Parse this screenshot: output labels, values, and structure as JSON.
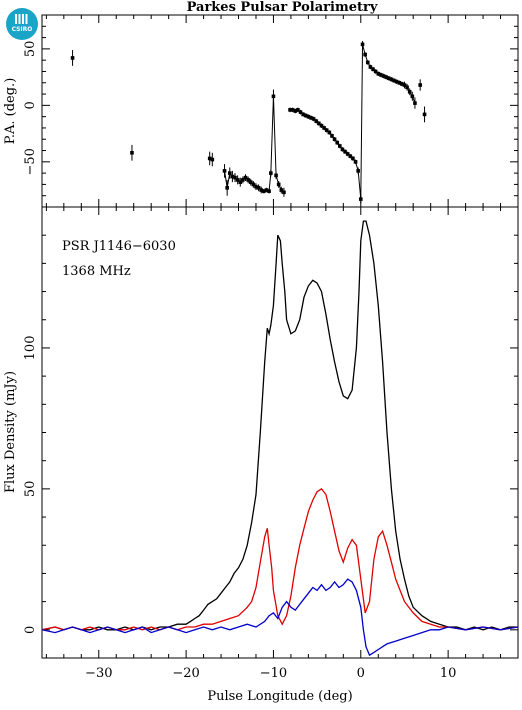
{
  "logo": {
    "text": "CSIRO",
    "color": "#1aa4c8"
  },
  "chart_data": {
    "type": "line",
    "title": "Parkes Pulsar Polarimetry",
    "xlabel": "Pulse Longitude (deg)",
    "xlim": [
      -36.5,
      18
    ],
    "xticks": [
      "−30",
      "−20",
      "−10",
      "0",
      "10"
    ],
    "xtick_values": [
      -30,
      -20,
      -10,
      0,
      10
    ],
    "annotations": [
      "PSR J1146−6030",
      "1368 MHz"
    ],
    "pa_panel": {
      "ylabel": "P.A. (deg.)",
      "ylim": [
        -90,
        80
      ],
      "yticks": [
        "50",
        "0",
        "−50"
      ],
      "ytick_values": [
        50,
        0,
        -50
      ],
      "points": [
        {
          "x": -33.0,
          "y": 42,
          "err": 7
        },
        {
          "x": -26.2,
          "y": -42,
          "err": 7
        },
        {
          "x": -17.3,
          "y": -47,
          "err": 6
        },
        {
          "x": -17.0,
          "y": -48,
          "err": 6
        },
        {
          "x": -15.6,
          "y": -58,
          "err": 6
        },
        {
          "x": -15.3,
          "y": -73,
          "err": 7
        },
        {
          "x": -15.0,
          "y": -60,
          "err": 5
        },
        {
          "x": -14.7,
          "y": -63,
          "err": 5
        },
        {
          "x": -14.4,
          "y": -64,
          "err": 4
        },
        {
          "x": -14.1,
          "y": -66,
          "err": 4
        },
        {
          "x": -13.8,
          "y": -68,
          "err": 4
        },
        {
          "x": -13.5,
          "y": -66,
          "err": 3
        },
        {
          "x": -13.2,
          "y": -64,
          "err": 3
        },
        {
          "x": -12.9,
          "y": -66,
          "err": 3
        },
        {
          "x": -12.6,
          "y": -68,
          "err": 3
        },
        {
          "x": -12.3,
          "y": -70,
          "err": 3
        },
        {
          "x": -12.0,
          "y": -72,
          "err": 3
        },
        {
          "x": -11.7,
          "y": -73,
          "err": 3
        },
        {
          "x": -11.4,
          "y": -75,
          "err": 3
        },
        {
          "x": -11.1,
          "y": -76,
          "err": 2
        },
        {
          "x": -10.8,
          "y": -75,
          "err": 2
        },
        {
          "x": -10.5,
          "y": -76,
          "err": 2
        },
        {
          "x": -10.3,
          "y": -60,
          "err": 3
        },
        {
          "x": -10.0,
          "y": 8,
          "err": 6
        },
        {
          "x": -9.7,
          "y": -62,
          "err": 3
        },
        {
          "x": -9.4,
          "y": -70,
          "err": 3
        },
        {
          "x": -9.1,
          "y": -75,
          "err": 3
        },
        {
          "x": -8.8,
          "y": -77,
          "err": 4
        },
        {
          "x": -8.1,
          "y": -4,
          "err": 2
        },
        {
          "x": -7.8,
          "y": -4,
          "err": 2
        },
        {
          "x": -7.5,
          "y": -5,
          "err": 2
        },
        {
          "x": -7.2,
          "y": -4,
          "err": 2
        },
        {
          "x": -6.9,
          "y": -6,
          "err": 2
        },
        {
          "x": -6.6,
          "y": -8,
          "err": 2
        },
        {
          "x": -6.3,
          "y": -9,
          "err": 2
        },
        {
          "x": -6.0,
          "y": -10,
          "err": 2
        },
        {
          "x": -5.7,
          "y": -11,
          "err": 2
        },
        {
          "x": -5.4,
          "y": -12,
          "err": 2
        },
        {
          "x": -5.1,
          "y": -14,
          "err": 2
        },
        {
          "x": -4.8,
          "y": -16,
          "err": 2
        },
        {
          "x": -4.5,
          "y": -18,
          "err": 2
        },
        {
          "x": -4.2,
          "y": -20,
          "err": 2
        },
        {
          "x": -3.9,
          "y": -22,
          "err": 2
        },
        {
          "x": -3.6,
          "y": -24,
          "err": 2
        },
        {
          "x": -3.3,
          "y": -27,
          "err": 2
        },
        {
          "x": -3.0,
          "y": -30,
          "err": 2
        },
        {
          "x": -2.7,
          "y": -33,
          "err": 2
        },
        {
          "x": -2.4,
          "y": -36,
          "err": 2
        },
        {
          "x": -2.1,
          "y": -39,
          "err": 2
        },
        {
          "x": -1.8,
          "y": -41,
          "err": 2
        },
        {
          "x": -1.5,
          "y": -43,
          "err": 2
        },
        {
          "x": -1.2,
          "y": -45,
          "err": 2
        },
        {
          "x": -0.9,
          "y": -47,
          "err": 2
        },
        {
          "x": -0.6,
          "y": -50,
          "err": 2
        },
        {
          "x": -0.3,
          "y": -58,
          "err": 3
        },
        {
          "x": 0.0,
          "y": -83,
          "err": 4
        },
        {
          "x": 0.2,
          "y": 54,
          "err": 3
        },
        {
          "x": 0.5,
          "y": 45,
          "err": 2
        },
        {
          "x": 0.8,
          "y": 38,
          "err": 2
        },
        {
          "x": 1.1,
          "y": 34,
          "err": 2
        },
        {
          "x": 1.4,
          "y": 32,
          "err": 2
        },
        {
          "x": 1.7,
          "y": 30,
          "err": 2
        },
        {
          "x": 2.0,
          "y": 28,
          "err": 2
        },
        {
          "x": 2.3,
          "y": 27,
          "err": 2
        },
        {
          "x": 2.6,
          "y": 26,
          "err": 2
        },
        {
          "x": 2.9,
          "y": 25,
          "err": 2
        },
        {
          "x": 3.2,
          "y": 24,
          "err": 2
        },
        {
          "x": 3.5,
          "y": 23,
          "err": 2
        },
        {
          "x": 3.8,
          "y": 22,
          "err": 2
        },
        {
          "x": 4.1,
          "y": 21,
          "err": 2
        },
        {
          "x": 4.4,
          "y": 20,
          "err": 2
        },
        {
          "x": 4.7,
          "y": 19,
          "err": 2
        },
        {
          "x": 5.0,
          "y": 18,
          "err": 3
        },
        {
          "x": 5.3,
          "y": 16,
          "err": 3
        },
        {
          "x": 5.6,
          "y": 12,
          "err": 3
        },
        {
          "x": 5.9,
          "y": 8,
          "err": 4
        },
        {
          "x": 6.2,
          "y": 2,
          "err": 5
        },
        {
          "x": 6.8,
          "y": 18,
          "err": 5
        },
        {
          "x": 7.3,
          "y": -8,
          "err": 7
        }
      ]
    },
    "flux_panel": {
      "ylabel": "Flux Density (mJy)",
      "ylim": [
        -10,
        150
      ],
      "yticks": [
        "100",
        "50",
        "0"
      ],
      "ytick_values": [
        100,
        50,
        0
      ],
      "series": [
        {
          "color": "#000000",
          "x": [
            -36.5,
            -35,
            -34,
            -33,
            -32,
            -31,
            -30,
            -29,
            -28,
            -27,
            -26,
            -25,
            -24,
            -23,
            -22,
            -21,
            -20,
            -19.5,
            -19,
            -18.5,
            -18,
            -17.5,
            -17,
            -16.5,
            -16,
            -15.5,
            -15,
            -14.5,
            -14,
            -13.5,
            -13,
            -12.5,
            -12,
            -11.5,
            -11,
            -10.7,
            -10.5,
            -10.3,
            -10,
            -9.7,
            -9.5,
            -9.2,
            -9,
            -8.7,
            -8.5,
            -8,
            -7.5,
            -7,
            -6.5,
            -6,
            -5.5,
            -5,
            -4.5,
            -4,
            -3.5,
            -3,
            -2.5,
            -2,
            -1.5,
            -1,
            -0.5,
            -0.2,
            0,
            0.3,
            0.6,
            1,
            1.5,
            2,
            2.5,
            3,
            3.5,
            4,
            4.5,
            5,
            5.5,
            6,
            7,
            8,
            9,
            10,
            11,
            12,
            13,
            14,
            15,
            16,
            17,
            18
          ],
          "values": [
            0,
            1,
            0,
            1,
            0,
            0,
            1,
            0,
            0,
            1,
            0,
            1,
            0,
            1,
            1,
            2,
            2,
            3,
            4,
            5,
            7,
            9,
            10,
            11,
            13,
            15,
            17,
            20,
            22,
            25,
            30,
            38,
            48,
            70,
            95,
            107,
            105,
            108,
            115,
            130,
            140,
            138,
            130,
            120,
            110,
            105,
            106,
            110,
            118,
            122,
            124,
            123,
            120,
            112,
            103,
            95,
            88,
            83,
            82,
            85,
            100,
            120,
            138,
            145,
            145,
            140,
            130,
            115,
            95,
            70,
            50,
            35,
            25,
            18,
            12,
            8,
            5,
            3,
            2,
            1,
            1,
            0,
            1,
            0,
            1,
            0,
            1,
            1
          ]
        },
        {
          "color": "#e00000",
          "x": [
            -36.5,
            -35,
            -34,
            -33,
            -32,
            -31,
            -30,
            -29,
            -28,
            -27,
            -26,
            -25,
            -24,
            -23,
            -22,
            -21,
            -20,
            -19,
            -18,
            -17,
            -16,
            -15,
            -14,
            -13,
            -12.5,
            -12,
            -11.5,
            -11,
            -10.7,
            -10.5,
            -10.2,
            -10,
            -9.5,
            -9,
            -8.5,
            -8,
            -7.5,
            -7,
            -6.5,
            -6,
            -5.5,
            -5,
            -4.5,
            -4,
            -3.5,
            -3,
            -2.5,
            -2,
            -1.5,
            -1,
            -0.5,
            0,
            0.5,
            1,
            1.5,
            2,
            2.5,
            3,
            3.5,
            4,
            4.5,
            5,
            6,
            7,
            8,
            9,
            10,
            12,
            14,
            16,
            18
          ],
          "values": [
            0,
            1,
            0,
            1,
            0,
            1,
            0,
            1,
            0,
            0,
            1,
            0,
            1,
            0,
            1,
            0,
            1,
            1,
            2,
            2,
            3,
            4,
            5,
            8,
            10,
            15,
            24,
            33,
            36,
            30,
            22,
            14,
            5,
            2,
            5,
            12,
            22,
            30,
            36,
            42,
            46,
            49,
            50,
            48,
            42,
            35,
            28,
            24,
            29,
            32,
            30,
            18,
            6,
            10,
            25,
            33,
            35,
            30,
            24,
            18,
            14,
            10,
            6,
            3,
            2,
            1,
            1,
            0,
            1,
            0,
            1
          ]
        },
        {
          "color": "#0000cc",
          "x": [
            -36.5,
            -35,
            -34,
            -33,
            -32,
            -31,
            -30,
            -29,
            -28,
            -27,
            -26,
            -25,
            -24,
            -23,
            -22,
            -21,
            -20,
            -19,
            -18,
            -17,
            -16,
            -15,
            -14,
            -13,
            -12,
            -11,
            -10.5,
            -10,
            -9.5,
            -9,
            -8.5,
            -8,
            -7.5,
            -7,
            -6.5,
            -6,
            -5.5,
            -5,
            -4.5,
            -4,
            -3.5,
            -3,
            -2.5,
            -2,
            -1.5,
            -1,
            -0.5,
            0,
            0.3,
            0.6,
            1,
            1.5,
            2,
            2.5,
            3,
            4,
            5,
            6,
            7,
            8,
            9,
            10,
            12,
            14,
            16,
            18
          ],
          "values": [
            0,
            -1,
            0,
            1,
            0,
            -1,
            0,
            1,
            0,
            -1,
            0,
            1,
            -1,
            0,
            1,
            0,
            -1,
            0,
            1,
            0,
            1,
            0,
            1,
            2,
            1,
            3,
            5,
            6,
            4,
            8,
            10,
            8,
            7,
            9,
            11,
            13,
            15,
            14,
            16,
            14,
            15,
            17,
            15,
            16,
            18,
            17,
            14,
            8,
            0,
            -6,
            -9,
            -8,
            -7,
            -6,
            -5,
            -4,
            -3,
            -2,
            -1,
            0,
            0,
            1,
            0,
            1,
            0,
            1
          ]
        }
      ]
    }
  }
}
